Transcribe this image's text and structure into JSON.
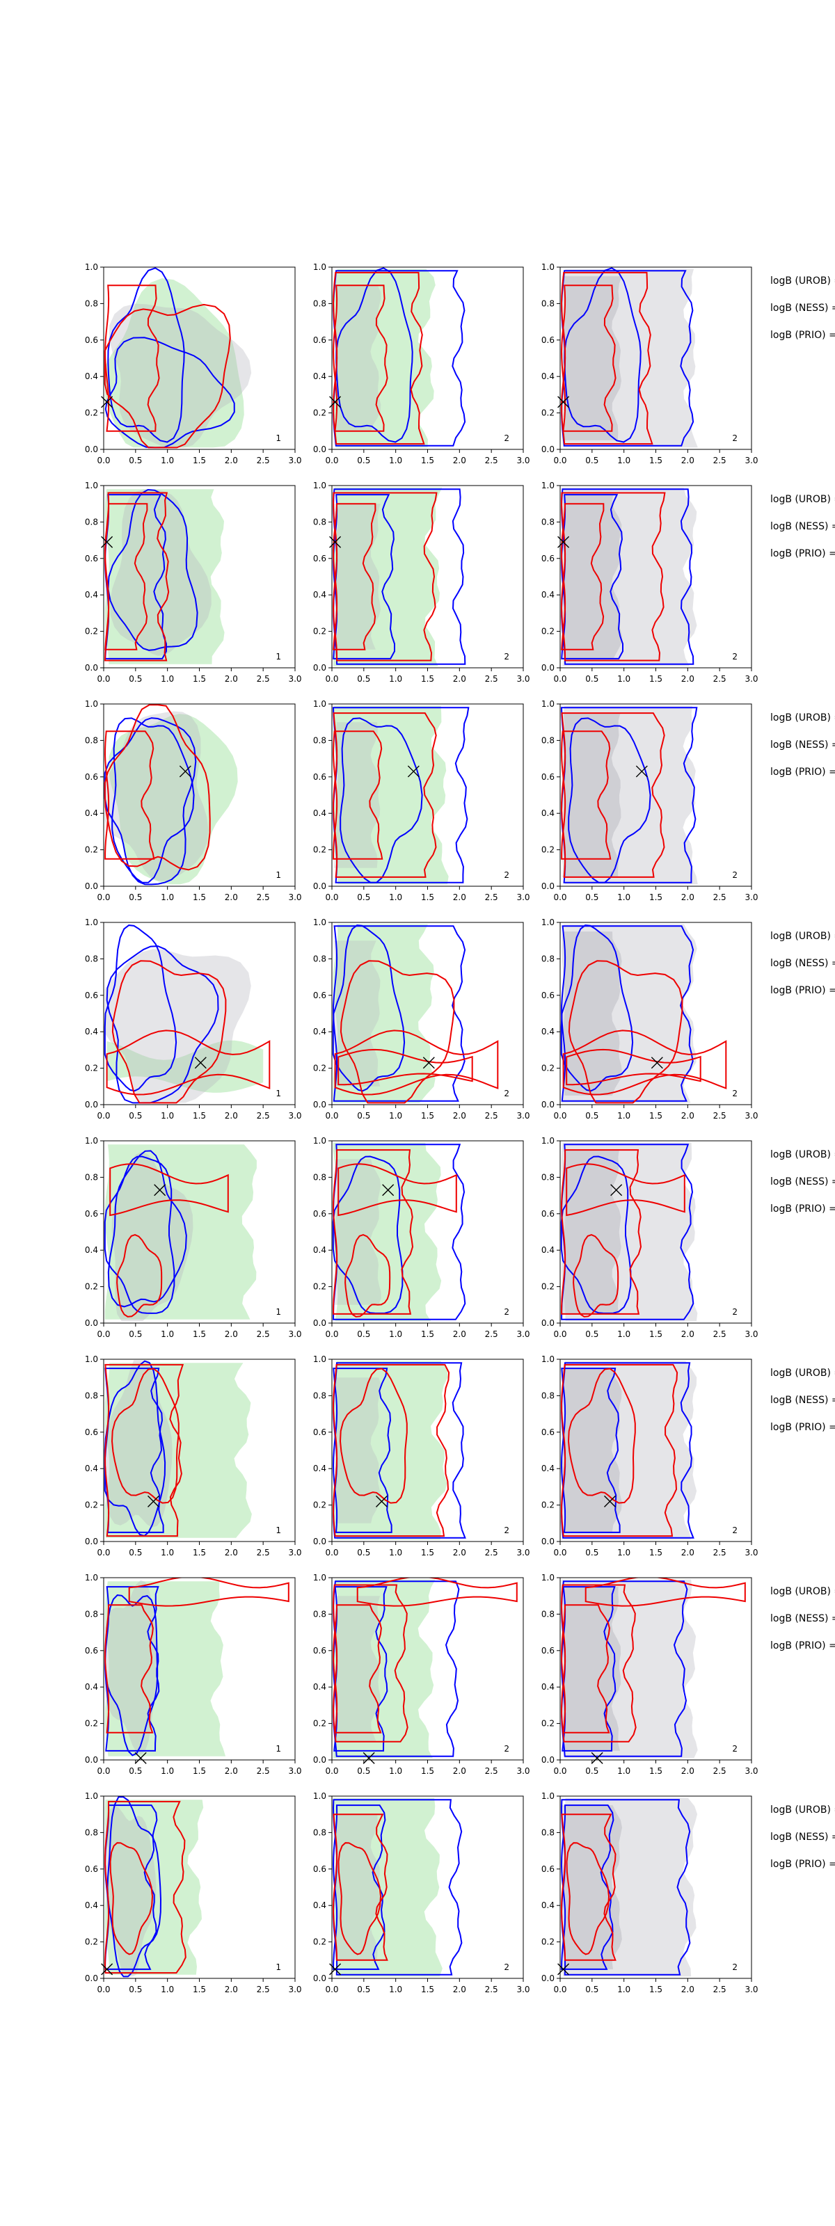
{
  "chart_data": {
    "type": "contour",
    "xlim": [
      0,
      3
    ],
    "ylim": [
      0,
      1
    ],
    "x_ticks": [
      "0.0",
      "0.5",
      "1.0",
      "1.5",
      "2.0",
      "2.5",
      "3.0"
    ],
    "y_ticks": [
      "0.0",
      "0.2",
      "0.4",
      "0.6",
      "0.8",
      "1.0"
    ],
    "column_numbers": [
      "1",
      "2",
      "2"
    ],
    "side_labels": [
      "logB (UROB) =",
      "logB (NESS) =",
      "logB (PRIO) ="
    ],
    "colors": {
      "blue": "#0000ff",
      "red": "#ee0000",
      "green_fill": "#7ad77a",
      "grey_fill": "#b4b4bc"
    },
    "rows": [
      {
        "marker": {
          "x": 0.05,
          "y": 0.26
        }
      },
      {
        "marker": {
          "x": 0.05,
          "y": 0.69
        }
      },
      {
        "marker": {
          "x": 1.28,
          "y": 0.63
        }
      },
      {
        "marker": {
          "x": 1.52,
          "y": 0.23
        }
      },
      {
        "marker": {
          "x": 0.88,
          "y": 0.73
        }
      },
      {
        "marker": {
          "x": 0.78,
          "y": 0.22
        }
      },
      {
        "marker": {
          "x": 0.58,
          "y": 0.01
        }
      },
      {
        "marker": {
          "x": 0.05,
          "y": 0.05
        }
      }
    ]
  }
}
